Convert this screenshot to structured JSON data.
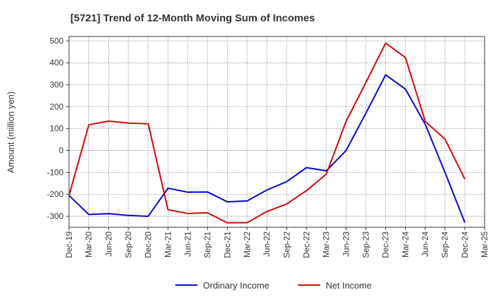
{
  "chart_data": {
    "type": "line",
    "title": "[5721]  Trend of 12-Month Moving Sum of Incomes",
    "xlabel": "",
    "ylabel": "Amount (million yen)",
    "ylim": [
      -350,
      520
    ],
    "yticks": [
      500,
      400,
      300,
      200,
      100,
      0,
      -100,
      -200,
      -300
    ],
    "grid": true,
    "legend": "bottom",
    "categories": [
      "Dec-19",
      "Mar-20",
      "Jun-20",
      "Sep-20",
      "Dec-20",
      "Mar-21",
      "Jun-21",
      "Sep-21",
      "Dec-21",
      "Mar-22",
      "Jun-22",
      "Sep-22",
      "Dec-22",
      "Mar-23",
      "Jun-23",
      "Sep-23",
      "Dec-23",
      "Mar-24",
      "Jun-24",
      "Sep-24",
      "Dec-24",
      "Mar-25"
    ],
    "series": [
      {
        "name": "Ordinary Income",
        "color": "#0000dd",
        "values": [
          -205,
          -292,
          -288,
          -296,
          -300,
          -172,
          -190,
          -189,
          -234,
          -230,
          -180,
          -142,
          -78,
          -93,
          0,
          170,
          345,
          280,
          120,
          -100,
          -328,
          null
        ]
      },
      {
        "name": "Net Income",
        "color": "#dd0000",
        "values": [
          -205,
          117,
          134,
          125,
          122,
          -270,
          -287,
          -284,
          -330,
          -329,
          -278,
          -244,
          -183,
          -108,
          133,
          310,
          490,
          424,
          133,
          52,
          -130,
          null
        ]
      }
    ]
  }
}
